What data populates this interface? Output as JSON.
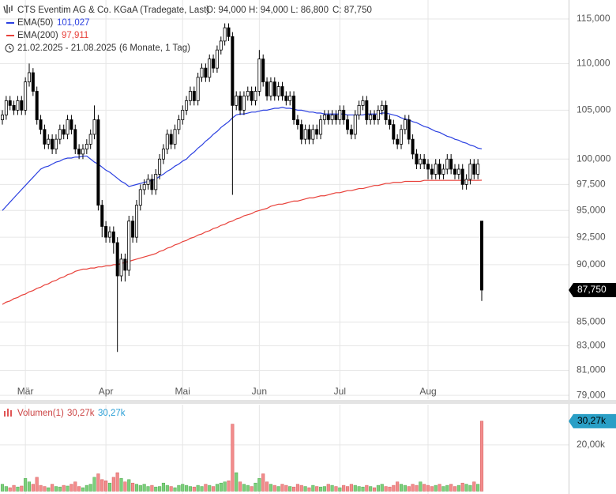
{
  "chart_data": {
    "type": "candlestick",
    "title": "CTS Eventim AG & Co. KGaA (Tradegate, Last)",
    "quote": [
      "O: 94,000",
      "H: 94,000",
      "L: 86,800",
      "C: 87,750"
    ],
    "period": "21.02.2025 - 21.08.2025",
    "period_note": "(6 Monate, 1 Tag)",
    "categories": [
      null,
      null,
      null,
      null,
      null,
      null,
      "Mär",
      null,
      null,
      null,
      null,
      null,
      null,
      null,
      null,
      null,
      null,
      null,
      null,
      null,
      null,
      null,
      null,
      null,
      null,
      null,
      null,
      "Apr",
      null,
      null,
      null,
      null,
      null,
      null,
      null,
      null,
      null,
      null,
      null,
      null,
      null,
      null,
      null,
      null,
      null,
      null,
      null,
      "Mai",
      null,
      null,
      null,
      null,
      null,
      null,
      null,
      null,
      null,
      null,
      null,
      null,
      null,
      null,
      null,
      null,
      null,
      null,
      null,
      "Jun",
      null,
      null,
      null,
      null,
      null,
      null,
      null,
      null,
      null,
      null,
      null,
      null,
      null,
      null,
      null,
      null,
      null,
      null,
      null,
      null,
      "Jul",
      null,
      null,
      null,
      null,
      null,
      null,
      null,
      null,
      null,
      null,
      null,
      null,
      null,
      null,
      null,
      null,
      null,
      null,
      null,
      null,
      null,
      null,
      "Aug",
      null,
      null,
      null,
      null,
      null,
      null,
      null,
      null,
      null,
      null,
      null,
      null,
      null,
      null
    ],
    "open": [
      104,
      104.5,
      106,
      105.5,
      105,
      106,
      105,
      108,
      109,
      107,
      104,
      103,
      101.5,
      102,
      101,
      102,
      103,
      102.5,
      104,
      103,
      101,
      100.5,
      101,
      101.5,
      102.5,
      104,
      95.5,
      93.5,
      92.5,
      93,
      92,
      89,
      90.5,
      89.5,
      94,
      92.5,
      95.5,
      97,
      97.5,
      98,
      97,
      98.5,
      100,
      101,
      102.5,
      101.5,
      103,
      104,
      105,
      106,
      107,
      106,
      108.5,
      109.5,
      108.5,
      110.5,
      109.5,
      111.5,
      112.5,
      114,
      113,
      105.5,
      106.5,
      105,
      106.5,
      107,
      106,
      107,
      110.5,
      108,
      106.5,
      108,
      106.5,
      107.5,
      106.5,
      106,
      106.5,
      104,
      103.5,
      102,
      103,
      102,
      103,
      102.5,
      104,
      104.5,
      104,
      104.5,
      104,
      105,
      104,
      103,
      102.5,
      104.5,
      105.5,
      106,
      104,
      104.5,
      104,
      105,
      105.5,
      104,
      103.5,
      102,
      101.5,
      103,
      104,
      102,
      100.5,
      99.5,
      100,
      99.5,
      99,
      98.5,
      99.5,
      98.5,
      99,
      100,
      99,
      98.5,
      99,
      97.5,
      98,
      99.5,
      98.5,
      94
    ],
    "high": [
      105,
      106.5,
      106.5,
      106,
      106.5,
      106.5,
      108.5,
      110,
      109.5,
      107.5,
      104.5,
      103.5,
      102.5,
      102.5,
      102.5,
      103.5,
      103.5,
      104.5,
      104.5,
      103.5,
      101.5,
      101.5,
      102,
      103,
      105.5,
      104.5,
      96,
      94,
      93.5,
      93.5,
      92.5,
      91,
      91,
      94.5,
      94.5,
      96,
      97.5,
      98,
      98.5,
      98.5,
      99,
      100.5,
      101.5,
      103,
      103,
      103.5,
      104.5,
      105.5,
      106.5,
      107.5,
      107.5,
      109,
      110,
      110,
      111,
      111,
      112,
      113,
      114.5,
      114.5,
      113.5,
      107,
      107,
      107,
      107.5,
      107.5,
      107.5,
      111.5,
      111,
      108.5,
      108.5,
      108.5,
      108,
      108,
      107,
      107,
      107,
      104.5,
      104,
      103.5,
      103.5,
      103.5,
      103.5,
      104.5,
      105,
      105,
      105,
      105,
      105.5,
      105.5,
      104.5,
      103.5,
      105,
      106,
      106.5,
      106.5,
      105,
      105,
      105.5,
      106,
      106,
      104.5,
      104,
      102.5,
      103.5,
      104.5,
      104.5,
      102.5,
      101,
      100.5,
      100.5,
      100,
      99.5,
      100,
      100,
      99.5,
      100.5,
      100.5,
      99.5,
      99.5,
      99.5,
      98.5,
      100,
      100,
      100,
      94
    ],
    "low": [
      103.5,
      104,
      105,
      104.5,
      104.5,
      104.5,
      104.5,
      107.5,
      106.5,
      103.5,
      102.5,
      101,
      101,
      100.5,
      100.5,
      101.5,
      102,
      102,
      102.5,
      100.5,
      100,
      100,
      100.5,
      101,
      102,
      95,
      92.5,
      92,
      92,
      91,
      82.5,
      88.5,
      88.5,
      89,
      92,
      92,
      95,
      96.5,
      97,
      96.5,
      96.5,
      98,
      99.5,
      100.5,
      101,
      101,
      102.5,
      103.5,
      104.5,
      105.5,
      105.5,
      105.5,
      108,
      108,
      108,
      109,
      109,
      111,
      112,
      112.5,
      96.5,
      105,
      104.5,
      104.5,
      106,
      105.5,
      105.5,
      106.5,
      107.5,
      106,
      106,
      106,
      106,
      106,
      105.5,
      105.5,
      103.5,
      103,
      101.5,
      101.5,
      101.5,
      101.5,
      102,
      102,
      103.5,
      103.5,
      103.5,
      103.5,
      103.5,
      103.5,
      102.5,
      102,
      102,
      104,
      105,
      103.5,
      103.5,
      103.5,
      103.5,
      104.5,
      103.5,
      103,
      101.5,
      101,
      101,
      102.5,
      101.5,
      100,
      99,
      99,
      99,
      98,
      98,
      98,
      98,
      98,
      98.5,
      98.5,
      98,
      98,
      97,
      97,
      97.5,
      98,
      98,
      86.8
    ],
    "close": [
      104.5,
      106,
      105.5,
      105,
      106,
      105,
      108,
      109,
      107,
      104,
      103,
      101.5,
      102,
      101,
      102,
      103,
      102.5,
      104,
      103,
      101,
      100.5,
      101,
      101.5,
      102.5,
      104,
      95.5,
      93.5,
      92.5,
      93,
      92,
      89,
      90.5,
      89.5,
      94,
      92.5,
      95.5,
      97,
      97.5,
      98,
      97,
      98.5,
      100,
      101,
      102.5,
      101.5,
      103,
      104,
      105,
      106,
      107,
      106,
      108.5,
      109.5,
      108.5,
      110.5,
      109.5,
      111.5,
      112.5,
      114,
      113,
      105.5,
      106.5,
      105,
      106.5,
      107,
      106,
      107,
      110.5,
      108,
      106.5,
      108,
      106.5,
      107.5,
      106.5,
      106,
      106.5,
      104,
      103.5,
      102,
      103,
      102,
      103,
      102.5,
      104,
      104.5,
      104,
      104.5,
      104,
      105,
      104,
      103,
      102.5,
      104.5,
      105.5,
      106,
      104,
      104.5,
      104,
      105,
      105.5,
      104,
      103.5,
      102,
      101.5,
      103,
      104,
      102,
      100.5,
      99.5,
      100,
      99.5,
      99,
      98.5,
      99.5,
      98.5,
      99,
      100,
      99,
      98.5,
      99,
      97.5,
      98,
      99.5,
      98.5,
      99.5,
      87.75
    ],
    "up_color": "#ffffff",
    "down_color": "#000000",
    "last_label": "87,750",
    "series": [
      {
        "name": "EMA(50)",
        "color": "#2a3fe0",
        "value_label": "101,027",
        "values": [
          95,
          95.4,
          95.8,
          96.2,
          96.6,
          97,
          97.4,
          97.8,
          98.2,
          98.6,
          99,
          99.2,
          99.3,
          99.5,
          99.7,
          99.8,
          100,
          100.1,
          100.1,
          100.2,
          100.2,
          100.3,
          100.3,
          100,
          99.7,
          99.5,
          99.2,
          98.9,
          98.7,
          98.4,
          98.1,
          97.8,
          97.6,
          97.3,
          97.4,
          97.5,
          97.6,
          97.7,
          97.8,
          97.9,
          98,
          98.3,
          98.5,
          98.8,
          99,
          99.3,
          99.5,
          99.8,
          100,
          100.4,
          100.7,
          101.1,
          101.4,
          101.8,
          102.1,
          102.5,
          102.8,
          103.2,
          103.5,
          103.8,
          104.2,
          104.5,
          104.6,
          104.6,
          104.7,
          104.8,
          104.8,
          104.9,
          105,
          105,
          105.1,
          105.2,
          105.2,
          105.3,
          105.2,
          105.2,
          105.1,
          105,
          105,
          104.9,
          104.8,
          104.8,
          104.7,
          104.7,
          104.6,
          104.6,
          104.6,
          104.6,
          104.6,
          104.6,
          104.5,
          104.5,
          104.5,
          104.5,
          104.5,
          104.6,
          104.6,
          104.6,
          104.6,
          104.7,
          104.7,
          104.6,
          104.5,
          104.4,
          104.2,
          104.1,
          104,
          103.8,
          103.7,
          103.5,
          103.3,
          103.2,
          103,
          102.8,
          102.7,
          102.5,
          102.3,
          102.2,
          102,
          101.9,
          101.7,
          101.6,
          101.4,
          101.3,
          101.1,
          101.027
        ]
      },
      {
        "name": "EMA(200)",
        "color": "#e8413a",
        "value_label": "97,911",
        "values": [
          86.5,
          86.7,
          86.8,
          87,
          87.1,
          87.3,
          87.4,
          87.6,
          87.7,
          87.9,
          88,
          88.2,
          88.3,
          88.5,
          88.6,
          88.8,
          88.9,
          89.1,
          89.2,
          89.4,
          89.5,
          89.6,
          89.6,
          89.7,
          89.7,
          89.8,
          89.8,
          89.9,
          89.9,
          90,
          90,
          90.1,
          90.2,
          90.3,
          90.4,
          90.5,
          90.6,
          90.7,
          90.8,
          90.9,
          91,
          91.2,
          91.3,
          91.5,
          91.6,
          91.8,
          91.9,
          92.1,
          92.2,
          92.4,
          92.5,
          92.7,
          92.8,
          93,
          93.1,
          93.3,
          93.4,
          93.6,
          93.7,
          93.9,
          94,
          94.2,
          94.3,
          94.5,
          94.6,
          94.7,
          94.9,
          95,
          95.1,
          95.2,
          95.4,
          95.5,
          95.6,
          95.6,
          95.7,
          95.8,
          95.9,
          95.9,
          96,
          96.1,
          96.2,
          96.2,
          96.3,
          96.4,
          96.4,
          96.5,
          96.6,
          96.7,
          96.7,
          96.8,
          96.9,
          96.9,
          97,
          97.1,
          97.1,
          97.2,
          97.3,
          97.4,
          97.4,
          97.5,
          97.6,
          97.6,
          97.7,
          97.7,
          97.7,
          97.8,
          97.8,
          97.8,
          97.8,
          97.8,
          97.9,
          97.9,
          97.9,
          97.9,
          97.9,
          97.9,
          97.9,
          97.9,
          97.9,
          97.9,
          97.9,
          97.9,
          97.9,
          97.9,
          97.9,
          97.911
        ]
      }
    ],
    "log_scale": true,
    "ylim": [
      78.7,
      117.2
    ],
    "yticks": [
      {
        "value": 79,
        "label": "79,000"
      },
      {
        "value": 81,
        "label": "81,000"
      },
      {
        "value": 83,
        "label": "83,000"
      },
      {
        "value": 85,
        "label": "85,000"
      },
      {
        "value": 90,
        "label": "90,000"
      },
      {
        "value": 92.5,
        "label": "92,500"
      },
      {
        "value": 95,
        "label": "95,000"
      },
      {
        "value": 97.5,
        "label": "97,500"
      },
      {
        "value": 100,
        "label": "100,000"
      },
      {
        "value": 105,
        "label": "105,000"
      },
      {
        "value": 110,
        "label": "110,000"
      },
      {
        "value": 115,
        "label": "115,000"
      }
    ],
    "grid": true,
    "volume": {
      "name": "Volumen(1)",
      "legend_values": [
        "30,27k",
        "30,27k"
      ],
      "last_label": "30,27k",
      "up_color": "#7ccf7c",
      "down_color": "#f28c8c",
      "values": [
        3000,
        2000,
        1500,
        2500,
        1800,
        2200,
        5500,
        4000,
        3000,
        6000,
        2500,
        2000,
        1500,
        3000,
        2000,
        1800,
        2500,
        2200,
        3000,
        4000,
        2000,
        1500,
        2500,
        3000,
        6000,
        7500,
        5000,
        4500,
        3500,
        6000,
        8000,
        5500,
        4000,
        5000,
        3500,
        3000,
        2500,
        3000,
        2000,
        2500,
        1800,
        2000,
        3500,
        2500,
        2000,
        1500,
        2500,
        3000,
        2500,
        2000,
        1800,
        2500,
        2000,
        3000,
        2500,
        2000,
        3000,
        3500,
        4000,
        4500,
        29000,
        8000,
        4000,
        3000,
        2500,
        2000,
        3500,
        5500,
        7500,
        4000,
        3000,
        2500,
        2000,
        3000,
        2500,
        2000,
        1800,
        3000,
        2500,
        2000,
        1500,
        2500,
        2000,
        1800,
        2000,
        3000,
        2500,
        2000,
        1500,
        2500,
        2000,
        3000,
        2500,
        2000,
        1800,
        2500,
        2000,
        1500,
        2500,
        3000,
        2000,
        1800,
        2500,
        4000,
        3000,
        2500,
        2000,
        3000,
        2500,
        4000,
        3000,
        2500,
        2000,
        2500,
        3000,
        2000,
        2500,
        3000,
        2000,
        2500,
        3500,
        3000,
        2500,
        4000,
        3000,
        30270
      ],
      "ylim": [
        0,
        37400
      ],
      "yticks": [
        {
          "value": 20000,
          "label": "20,00k"
        }
      ]
    }
  }
}
